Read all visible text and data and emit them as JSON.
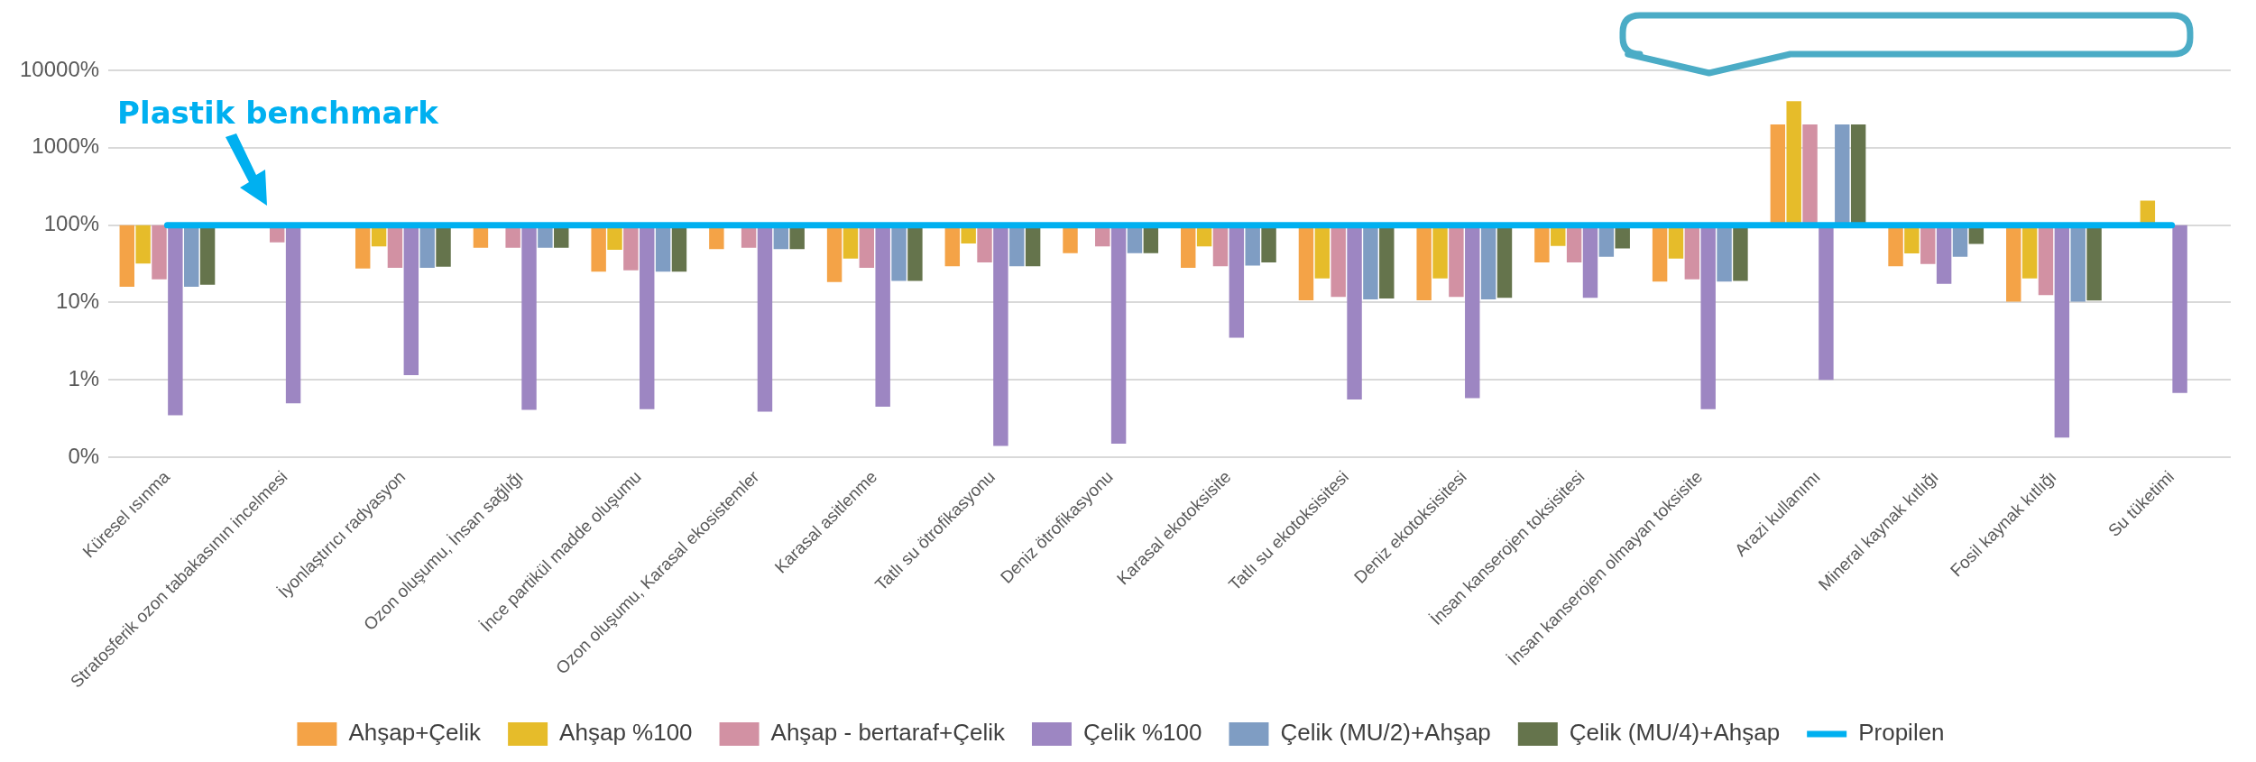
{
  "chart_data": {
    "type": "bar",
    "log": "y",
    "grid": "y",
    "legend": "bottom",
    "marker": "none",
    "annotations": [
      "Plastik benchmark"
    ],
    "categories": [
      "Küresel ısınma",
      "Stratosferik ozon tabakasının incelmesi",
      "İyonlaştırıcı radyasyon",
      "Ozon oluşumu, İnsan sağlığı",
      "İnce partikül madde oluşumu",
      "Ozon oluşumu, Karasal ekosistemler",
      "Karasal asitlenme",
      "Tatlı su ötrofikasyonu",
      "Deniz ötrofikasyonu",
      "Karasal ekotoksisite",
      "Tatlı su ekotoksisitesi",
      "Deniz ekotoksisitesi",
      "İnsan kanserojen toksisitesi",
      "İnsan kanserojen olmayan toksisite",
      "Arazi kullanımı",
      "Mineral kaynak kıtlığı",
      "Fosil kaynak kıtlığı",
      "Su tüketimi"
    ],
    "ylim": [
      0.1,
      10000
    ],
    "yticks": [
      {
        "value": 0.1,
        "label": "0%"
      },
      {
        "value": 1,
        "label": "1%"
      },
      {
        "value": 10,
        "label": "10%"
      },
      {
        "value": 100,
        "label": "100%"
      },
      {
        "value": 1000,
        "label": "1000%"
      },
      {
        "value": 10000,
        "label": "10000%"
      }
    ],
    "series": [
      {
        "name": "Ahşap+Çelik",
        "color": "#f4a347",
        "base": [
          100,
          null,
          100,
          100,
          100,
          100,
          100,
          100,
          100,
          100,
          100,
          100,
          100,
          100,
          100,
          100,
          100,
          null
        ],
        "values": [
          -84,
          null,
          -72.5,
          -49,
          -75,
          -51,
          -81.6,
          -70.5,
          -56.5,
          -72,
          -89.3,
          -89.3,
          -67,
          -81.3,
          1900,
          -70.5,
          -89.7,
          null
        ]
      },
      {
        "name": "Ahşap %100",
        "color": "#e6bc2a",
        "base": [
          100,
          null,
          100,
          null,
          100,
          null,
          100,
          100,
          null,
          100,
          100,
          100,
          100,
          100,
          100,
          100,
          100,
          100
        ],
        "values": [
          -68,
          null,
          -47,
          null,
          -52,
          null,
          -63,
          -42,
          null,
          -47,
          -79.5,
          -79.5,
          -46,
          -63,
          3900,
          -57,
          -79.5,
          107
        ]
      },
      {
        "name": "Ahşap - bertaraf+Çelik",
        "color": "#d291a3",
        "base": [
          100,
          100,
          100,
          100,
          100,
          100,
          100,
          100,
          100,
          100,
          100,
          100,
          100,
          100,
          100,
          100,
          100,
          null
        ],
        "values": [
          -80,
          -40,
          -72,
          -49,
          -74,
          -49,
          -72,
          -67,
          -47,
          -70.5,
          -88.2,
          -88.2,
          -67,
          -80,
          1900,
          -68.5,
          -87.5,
          null
        ]
      },
      {
        "name": "Çelik %100",
        "color": "#9d86c2",
        "base": [
          100,
          100,
          100,
          100,
          100,
          100,
          100,
          100,
          100,
          100,
          100,
          100,
          100,
          100,
          100,
          100,
          100,
          100
        ],
        "values": [
          -99.65,
          -99.5,
          -98.85,
          -99.59,
          -99.58,
          -99.61,
          -99.55,
          -99.86,
          -99.85,
          -96.5,
          -99.44,
          -99.42,
          -88.5,
          -99.58,
          -99,
          -82.5,
          -99.82,
          -99.32
        ]
      },
      {
        "name": "Çelik (MU/2)+Ahşap",
        "color": "#7f9dc3",
        "base": [
          100,
          null,
          100,
          100,
          100,
          100,
          100,
          100,
          100,
          100,
          100,
          100,
          100,
          100,
          100,
          100,
          100,
          null
        ],
        "values": [
          -84,
          null,
          -72,
          -49,
          -75,
          -51,
          -81,
          -70.5,
          -56.5,
          -70,
          -89,
          -89,
          -61,
          -81.3,
          1900,
          -61,
          -89.7,
          null
        ]
      },
      {
        "name": "Çelik (MU/4)+Ahşap",
        "color": "#65744c",
        "base": [
          100,
          null,
          100,
          100,
          100,
          100,
          100,
          100,
          100,
          100,
          100,
          100,
          100,
          100,
          100,
          100,
          100,
          null
        ],
        "values": [
          -83,
          null,
          -71,
          -49,
          -75,
          -51,
          -81,
          -70.5,
          -56.5,
          -67,
          -88.7,
          -88.5,
          -50,
          -81,
          1900,
          -43,
          -89.4,
          null
        ]
      },
      {
        "name": "Propilen",
        "type": "line",
        "color": "#00b0f0",
        "values": [
          100,
          100,
          100,
          100,
          100,
          100,
          100,
          100,
          100,
          100,
          100,
          100,
          100,
          100,
          100,
          100,
          100,
          100
        ]
      }
    ]
  }
}
